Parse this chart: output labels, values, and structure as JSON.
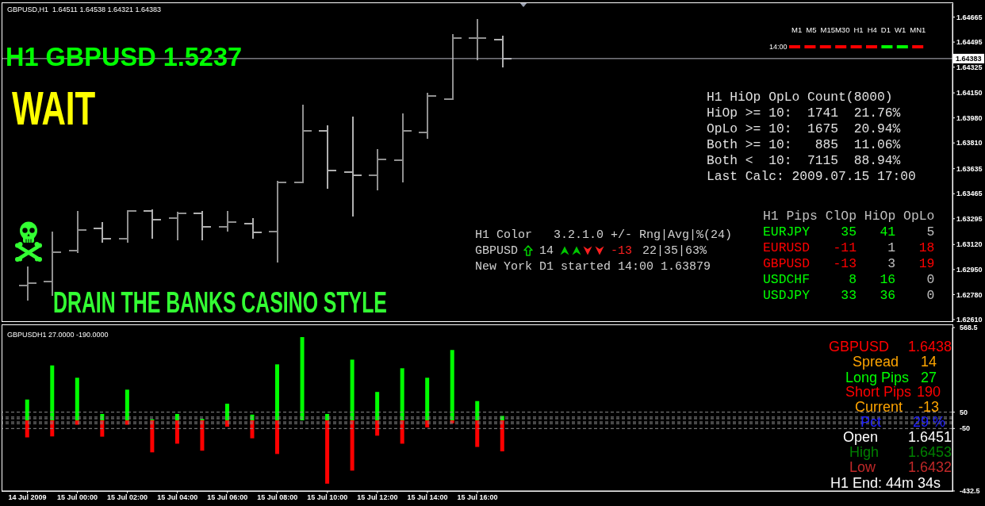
{
  "chart_data": [
    {
      "type": "candlestick",
      "title": "GBPUSD,H1  1.64511 1.64538 1.64321 1.64383",
      "x": [
        "2009-07-14T22:00",
        "2009-07-14T23:00",
        "2009-07-15T00:00",
        "2009-07-15T01:00",
        "2009-07-15T02:00",
        "2009-07-15T03:00",
        "2009-07-15T04:00",
        "2009-07-15T05:00",
        "2009-07-15T06:00",
        "2009-07-15T07:00",
        "2009-07-15T08:00",
        "2009-07-15T09:00",
        "2009-07-15T10:00",
        "2009-07-15T11:00",
        "2009-07-15T12:00",
        "2009-07-15T13:00",
        "2009-07-15T14:00",
        "2009-07-15T15:00",
        "2009-07-15T16:00",
        "2009-07-15T17:00"
      ],
      "xlim": [
        "2009-07-14T21:00",
        "2009-07-16T11:00"
      ],
      "ohlc": [
        [
          1.6284,
          1.6297,
          1.6274,
          1.6286
        ],
        [
          1.6287,
          1.6321,
          1.6277,
          1.6307
        ],
        [
          1.6308,
          1.6335,
          1.6306,
          1.6322
        ],
        [
          1.6323,
          1.6327,
          1.6313,
          1.6316
        ],
        [
          1.6316,
          1.6335,
          1.6313,
          1.6335
        ],
        [
          1.6335,
          1.6336,
          1.6316,
          1.6329
        ],
        [
          1.633,
          1.6334,
          1.6315,
          1.6333
        ],
        [
          1.6333,
          1.6335,
          1.6315,
          1.6324
        ],
        [
          1.6324,
          1.6335,
          1.6321,
          1.6327
        ],
        [
          1.6326,
          1.633,
          1.6316,
          1.632
        ],
        [
          1.6321,
          1.6355,
          1.63,
          1.6354
        ],
        [
          1.6354,
          1.6407,
          1.6354,
          1.6389
        ],
        [
          1.6389,
          1.6393,
          1.635,
          1.6362
        ],
        [
          1.6361,
          1.6399,
          1.6331,
          1.6359
        ],
        [
          1.6359,
          1.6377,
          1.6349,
          1.637
        ],
        [
          1.6369,
          1.6401,
          1.6354,
          1.6389
        ],
        [
          1.6388,
          1.6415,
          1.6384,
          1.6413
        ],
        [
          1.6411,
          1.6455,
          1.641,
          1.6452
        ],
        [
          1.6452,
          1.6465,
          1.6437,
          1.6452
        ],
        [
          1.64511,
          1.64538,
          1.64321,
          1.64383
        ]
      ],
      "colors": [
        "#909090",
        "#909090",
        "#909090",
        "#b0b0b0",
        "#909090",
        "#b0b0b0",
        "#909090",
        "#b0b0b0",
        "#909090",
        "#b0b0b0",
        "#909090",
        "#909090",
        "#b0b0b0",
        "#b0b0b0",
        "#909090",
        "#909090",
        "#909090",
        "#909090",
        "#909090",
        "#b0b0b0"
      ],
      "ylim": [
        1.62599,
        1.64754
      ],
      "yticks": [
        1.64665,
        1.64495,
        1.64325,
        {
          "value": 1.6415,
          "label": "1.64150"
        },
        {
          "value": 1.6398,
          "label": "1.63980"
        },
        {
          "value": 1.6381,
          "label": "1.63810"
        },
        1.63635,
        1.63465,
        1.63295,
        {
          "value": 1.6312,
          "label": "1.63120"
        },
        {
          "value": 1.6295,
          "label": "1.62950"
        },
        {
          "value": 1.6278,
          "label": "1.62780"
        },
        {
          "value": 1.6261,
          "label": "1.62610"
        }
      ],
      "tick_labels": "y",
      "ref_lines": [
        {
          "axis": "y",
          "value": 1.64383,
          "label": "1.64383",
          "color": "#b8b8c0"
        }
      ],
      "annotations": [
        "H1 GBPUSD 1.5237",
        "WAIT",
        "DRAIN THE BANKS CASINO STYLE",
        "M1 M5 M15M30 H1 H4 D1 W1 MN1",
        "14:00",
        "H1 HiOp OpLo Count(8000)",
        "HiOp >= 10:  1741  21.76%",
        "OpLo >= 10:  1675  20.94%",
        "Both >= 10:   885  11.06%",
        "Both <  10:  7115  88.94%",
        "Last Calc: 2009.07.15 17:00",
        "H1 Color   3.2.1.0 +/- Rng|Avg|%(24)",
        "GBPUSD",
        "14",
        "-13",
        "22|35|63%",
        "New York D1 started 14:00 1.63879",
        "H1 Pips ClOp HiOp OpLo",
        "EURJPY 35 41 5",
        "EURUSD -11 1 18",
        "GBPUSD -13 3 19",
        "USDCHF 8 16 0",
        "USDJPY 33 36 0"
      ]
    },
    {
      "type": "bar",
      "title": "GBPUSDH1 27.0000 -190.0000",
      "x": [
        "2009-07-14T22:00",
        "2009-07-14T23:00",
        "2009-07-15T00:00",
        "2009-07-15T01:00",
        "2009-07-15T02:00",
        "2009-07-15T03:00",
        "2009-07-15T04:00",
        "2009-07-15T05:00",
        "2009-07-15T06:00",
        "2009-07-15T07:00",
        "2009-07-15T08:00",
        "2009-07-15T09:00",
        "2009-07-15T10:00",
        "2009-07-15T11:00",
        "2009-07-15T12:00",
        "2009-07-15T13:00",
        "2009-07-15T14:00",
        "2009-07-15T15:00",
        "2009-07-15T16:00",
        "2009-07-15T17:00"
      ],
      "xlim": [
        "2009-07-14T21:00",
        "2009-07-16T11:00"
      ],
      "xticks": [
        {
          "value": "2009-07-14T22:00",
          "label": "14 Jul 2009"
        },
        {
          "value": "2009-07-15T00:00",
          "label": "15 Jul 00:00"
        },
        {
          "value": "2009-07-15T02:00",
          "label": "15 Jul 02:00"
        },
        {
          "value": "2009-07-15T04:00",
          "label": "15 Jul 04:00"
        },
        {
          "value": "2009-07-15T06:00",
          "label": "15 Jul 06:00"
        },
        {
          "value": "2009-07-15T08:00",
          "label": "15 Jul 08:00"
        },
        {
          "value": "2009-07-15T10:00",
          "label": "15 Jul 10:00"
        },
        {
          "value": "2009-07-15T12:00",
          "label": "15 Jul 12:00"
        },
        {
          "value": "2009-07-15T14:00",
          "label": "15 Jul 14:00"
        },
        {
          "value": "2009-07-15T16:00",
          "label": "15 Jul 16:00"
        }
      ],
      "stacked": true,
      "series": [
        {
          "color": "#00ff00",
          "values": [
            127,
            337,
            261,
            39,
            188,
            6,
            39,
            8,
            102,
            35,
            343,
            510,
            39,
            372,
            174,
            319,
            261,
            431,
            118,
            27
          ]
        },
        {
          "color": "#ff0000",
          "values": [
            -104,
            -98,
            -27,
            -100,
            -27,
            -196,
            -143,
            -186,
            -39,
            -110,
            -206,
            0,
            -388,
            -308,
            -94,
            -143,
            -43,
            -18,
            -163,
            -190
          ]
        }
      ],
      "ylim": [
        -432.5,
        568.5
      ],
      "yticks": [
        568.5,
        50,
        -50,
        -432.5
      ],
      "ref_lines": [
        {
          "axis": "y",
          "value": 50,
          "color": "#909090",
          "line_style": "dashed"
        },
        {
          "axis": "y",
          "value": 20,
          "color": "#909090",
          "line_style": "dashed"
        },
        {
          "axis": "y",
          "value": 10,
          "color": "#909090",
          "line_style": "dashed"
        },
        {
          "axis": "y",
          "value": -10,
          "color": "#909090",
          "line_style": "dashed"
        },
        {
          "axis": "y",
          "value": -20,
          "color": "#909090",
          "line_style": "dashed"
        },
        {
          "axis": "y",
          "value": -50,
          "color": "#909090",
          "line_style": "dashed"
        }
      ],
      "annotations": [
        "GBPUSD",
        "1.6438",
        "Spread",
        "14",
        "Long Pips",
        "27",
        "Short Pips",
        "190",
        "Current",
        "-13",
        "Pct",
        "29 %",
        "Open",
        "1.6451",
        "High",
        "1.6453",
        "Low",
        "1.6432",
        "H1 End: 44m 34s"
      ]
    }
  ]
}
